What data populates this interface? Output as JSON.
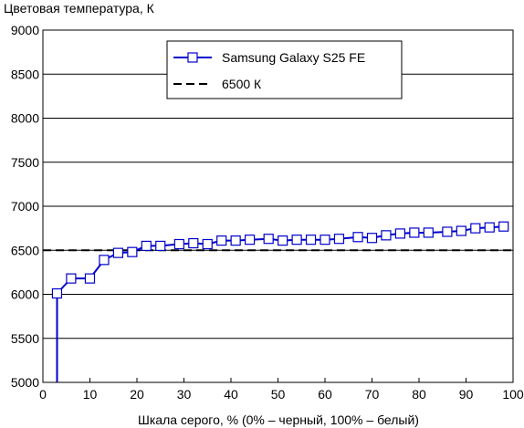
{
  "chart_data": {
    "type": "line",
    "ylabel": "Цветовая температура, К",
    "xlabel": "Шкала серого, % (0% – черный, 100% – белый)",
    "xlim": [
      0,
      100
    ],
    "ylim": [
      5000,
      9000
    ],
    "xticks": [
      0,
      10,
      20,
      30,
      40,
      50,
      60,
      70,
      80,
      90,
      100
    ],
    "yticks": [
      5000,
      5500,
      6000,
      6500,
      7000,
      7500,
      8000,
      8500,
      9000
    ],
    "grid": "horizontal",
    "legend_position": "top-center",
    "series": [
      {
        "name": "Samsung Galaxy S25 FE",
        "color": "#0000cc",
        "marker": "open-square",
        "x": [
          3,
          6,
          10,
          13,
          16,
          19,
          22,
          25,
          29,
          32,
          35,
          38,
          41,
          44,
          48,
          51,
          54,
          57,
          60,
          63,
          67,
          70,
          73,
          76,
          79,
          82,
          86,
          89,
          92,
          95,
          98
        ],
        "y": [
          6010,
          6180,
          6180,
          6390,
          6470,
          6480,
          6550,
          6550,
          6570,
          6580,
          6570,
          6610,
          6610,
          6620,
          6630,
          6610,
          6620,
          6620,
          6620,
          6630,
          6650,
          6640,
          6670,
          6690,
          6700,
          6700,
          6710,
          6720,
          6750,
          6760,
          6770
        ],
        "drop_to_axis_x": 3
      },
      {
        "name": "6500 К",
        "color": "#000000",
        "style": "dashed",
        "x": [
          0,
          100
        ],
        "y": [
          6500,
          6500
        ]
      }
    ]
  }
}
